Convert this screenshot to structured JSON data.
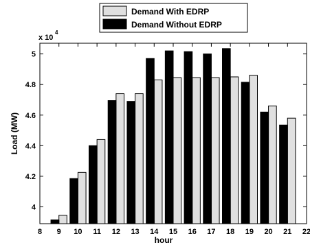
{
  "chart_data": {
    "type": "bar",
    "title": "",
    "xlabel": "hour",
    "ylabel": "Load (MW)",
    "y_multiplier_text": "x 10",
    "y_multiplier_exponent": "4",
    "xlim": [
      8,
      22
    ],
    "ylim": [
      38900,
      50700
    ],
    "x_ticks": [
      8,
      9,
      10,
      11,
      12,
      13,
      14,
      15,
      16,
      17,
      18,
      19,
      20,
      21,
      22
    ],
    "x_tick_labels": [
      "8",
      "9",
      "10",
      "11",
      "12",
      "13",
      "14",
      "15",
      "16",
      "17",
      "18",
      "19",
      "20",
      "21",
      "22"
    ],
    "y_ticks": [
      40000,
      42000,
      44000,
      46000,
      48000,
      50000
    ],
    "y_tick_labels": [
      "4",
      "4.2",
      "4.4",
      "4.6",
      "4.8",
      "5"
    ],
    "x": [
      9,
      10,
      11,
      12,
      13,
      14,
      15,
      16,
      17,
      18,
      19,
      20,
      21
    ],
    "series": [
      {
        "name": "Demand With EDRP",
        "color": "#e0e0e0",
        "values": [
          39450,
          42250,
          44400,
          47400,
          47400,
          48300,
          48450,
          48450,
          48450,
          48500,
          48600,
          46600,
          45800
        ]
      },
      {
        "name": "Demand Without EDRP",
        "color": "#000000",
        "values": [
          39150,
          41850,
          44000,
          46950,
          46900,
          49700,
          50200,
          50150,
          50000,
          50350,
          48150,
          46200,
          45350
        ]
      }
    ],
    "grid": false,
    "legend_position": "top-center"
  }
}
